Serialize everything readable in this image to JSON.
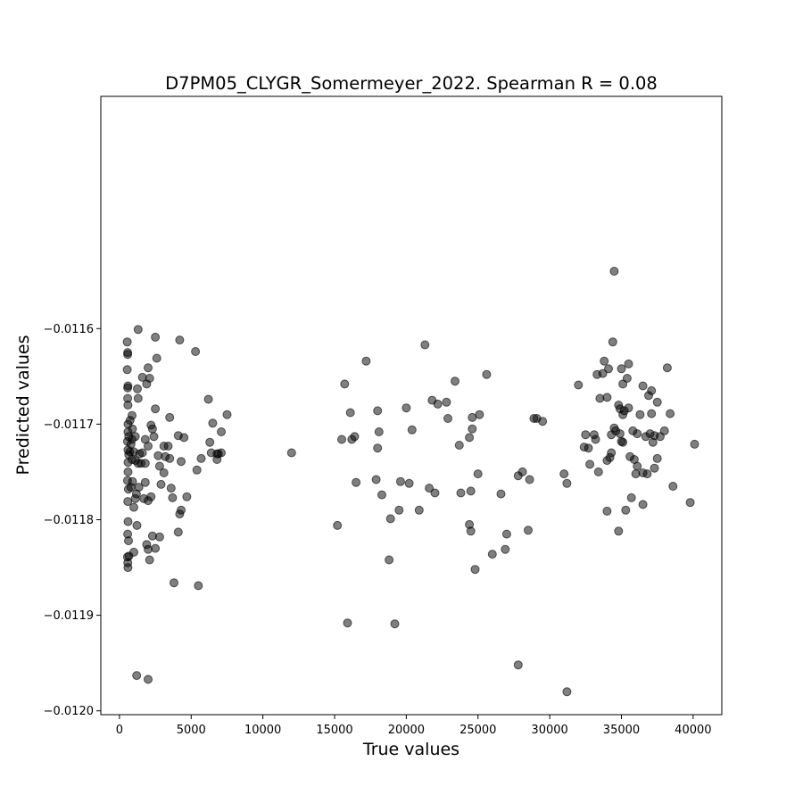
{
  "chart_data": {
    "type": "scatter",
    "title": "D7PM05_CLYGR_Somermeyer_2022. Spearman R = 0.08",
    "xlabel": "True values",
    "ylabel": "Predicted values",
    "xlim": [
      -1300,
      42000
    ],
    "ylim": [
      -0.012004,
      -0.011357
    ],
    "xticks": [
      0,
      5000,
      10000,
      15000,
      20000,
      25000,
      30000,
      35000,
      40000
    ],
    "xtick_labels": [
      "0",
      "5000",
      "10000",
      "15000",
      "20000",
      "25000",
      "30000",
      "35000",
      "40000"
    ],
    "yticks": [
      -0.0116,
      -0.0117,
      -0.0118,
      -0.0119,
      -0.012
    ],
    "ytick_labels": [
      "−0.0116",
      "−0.0117",
      "−0.0118",
      "−0.0119",
      "−0.0120"
    ],
    "grid": false,
    "marker_color": "#000000",
    "marker_opacity": 0.5,
    "points": [
      [
        540,
        -0.011614
      ],
      [
        570,
        -0.011625
      ],
      [
        570,
        -0.011627
      ],
      [
        540,
        -0.011643
      ],
      [
        590,
        -0.01166
      ],
      [
        570,
        -0.011662
      ],
      [
        570,
        -0.011673
      ],
      [
        590,
        -0.01168
      ],
      [
        880,
        -0.011691
      ],
      [
        740,
        -0.011696
      ],
      [
        600,
        -0.0117
      ],
      [
        900,
        -0.011705
      ],
      [
        590,
        -0.011708
      ],
      [
        650,
        -0.011713
      ],
      [
        880,
        -0.011716
      ],
      [
        560,
        -0.011718
      ],
      [
        1100,
        -0.011713
      ],
      [
        800,
        -0.011721
      ],
      [
        590,
        -0.011727
      ],
      [
        720,
        -0.011729
      ],
      [
        1000,
        -0.011729
      ],
      [
        650,
        -0.011732
      ],
      [
        880,
        -0.011737
      ],
      [
        600,
        -0.01174
      ],
      [
        600,
        -0.01175
      ],
      [
        910,
        -0.01176
      ],
      [
        560,
        -0.011759
      ],
      [
        620,
        -0.011768
      ],
      [
        800,
        -0.011766
      ],
      [
        1180,
        -0.011773
      ],
      [
        1100,
        -0.011778
      ],
      [
        1000,
        -0.011787
      ],
      [
        580,
        -0.011781
      ],
      [
        600,
        -0.011802
      ],
      [
        1220,
        -0.011806
      ],
      [
        570,
        -0.011815
      ],
      [
        630,
        -0.011822
      ],
      [
        1000,
        -0.011834
      ],
      [
        660,
        -0.011838
      ],
      [
        560,
        -0.011839
      ],
      [
        580,
        -0.011845
      ],
      [
        590,
        -0.01185
      ],
      [
        1120,
        -0.011738
      ],
      [
        1300,
        -0.011741
      ],
      [
        1500,
        -0.011741
      ],
      [
        1400,
        -0.011731
      ],
      [
        1600,
        -0.01173
      ],
      [
        1350,
        -0.011766
      ],
      [
        1250,
        -0.011663
      ],
      [
        1300,
        -0.011601
      ],
      [
        1300,
        -0.011673
      ],
      [
        1600,
        -0.011651
      ],
      [
        1900,
        -0.011658
      ],
      [
        1800,
        -0.011716
      ],
      [
        2000,
        -0.011723
      ],
      [
        2100,
        -0.011652
      ],
      [
        2000,
        -0.011641
      ],
      [
        2200,
        -0.011701
      ],
      [
        2300,
        -0.011705
      ],
      [
        2400,
        -0.011713
      ],
      [
        2500,
        -0.011684
      ],
      [
        2600,
        -0.011631
      ],
      [
        2500,
        -0.011609
      ],
      [
        1800,
        -0.011761
      ],
      [
        1700,
        -0.011778
      ],
      [
        2000,
        -0.01178
      ],
      [
        2200,
        -0.011776
      ],
      [
        1900,
        -0.011826
      ],
      [
        2000,
        -0.011831
      ],
      [
        2300,
        -0.011817
      ],
      [
        2500,
        -0.01183
      ],
      [
        2800,
        -0.011818
      ],
      [
        2100,
        -0.011842
      ],
      [
        1800,
        -0.011741
      ],
      [
        2700,
        -0.011733
      ],
      [
        2800,
        -0.011744
      ],
      [
        3100,
        -0.011751
      ],
      [
        3100,
        -0.011723
      ],
      [
        2900,
        -0.011763
      ],
      [
        3200,
        -0.011734
      ],
      [
        3400,
        -0.011723
      ],
      [
        3500,
        -0.011736
      ],
      [
        3500,
        -0.011693
      ],
      [
        3600,
        -0.011767
      ],
      [
        3700,
        -0.011777
      ],
      [
        4100,
        -0.011712
      ],
      [
        4300,
        -0.011739
      ],
      [
        4500,
        -0.011714
      ],
      [
        4200,
        -0.011794
      ],
      [
        4300,
        -0.01179
      ],
      [
        4700,
        -0.011776
      ],
      [
        4100,
        -0.011813
      ],
      [
        3800,
        -0.011866
      ],
      [
        4200,
        -0.011612
      ],
      [
        5300,
        -0.011624
      ],
      [
        5400,
        -0.011748
      ],
      [
        5700,
        -0.011736
      ],
      [
        5500,
        -0.011869
      ],
      [
        6200,
        -0.011674
      ],
      [
        6300,
        -0.011719
      ],
      [
        6400,
        -0.01173
      ],
      [
        6500,
        -0.011699
      ],
      [
        6800,
        -0.011731
      ],
      [
        6800,
        -0.011737
      ],
      [
        6900,
        -0.011731
      ],
      [
        7100,
        -0.01173
      ],
      [
        7100,
        -0.011708
      ],
      [
        7500,
        -0.01169
      ],
      [
        1200,
        -0.011963
      ],
      [
        2000,
        -0.011967
      ],
      [
        12000,
        -0.01173
      ],
      [
        15200,
        -0.011806
      ],
      [
        15500,
        -0.011716
      ],
      [
        15700,
        -0.011658
      ],
      [
        15900,
        -0.011908
      ],
      [
        16100,
        -0.011688
      ],
      [
        16200,
        -0.011716
      ],
      [
        16400,
        -0.011713
      ],
      [
        16500,
        -0.011761
      ],
      [
        17200,
        -0.011634
      ],
      [
        17900,
        -0.011758
      ],
      [
        18000,
        -0.011686
      ],
      [
        18000,
        -0.011725
      ],
      [
        18100,
        -0.011708
      ],
      [
        18300,
        -0.011774
      ],
      [
        18900,
        -0.011799
      ],
      [
        18800,
        -0.011842
      ],
      [
        19200,
        -0.011909
      ],
      [
        19500,
        -0.01179
      ],
      [
        19600,
        -0.01176
      ],
      [
        20000,
        -0.011683
      ],
      [
        20200,
        -0.011762
      ],
      [
        20400,
        -0.011706
      ],
      [
        20900,
        -0.01179
      ],
      [
        21300,
        -0.011617
      ],
      [
        21600,
        -0.011767
      ],
      [
        21800,
        -0.011675
      ],
      [
        22000,
        -0.011772
      ],
      [
        22200,
        -0.011679
      ],
      [
        22800,
        -0.011677
      ],
      [
        22900,
        -0.011694
      ],
      [
        23400,
        -0.011655
      ],
      [
        23700,
        -0.011722
      ],
      [
        23800,
        -0.011772
      ],
      [
        24400,
        -0.011714
      ],
      [
        24400,
        -0.011805
      ],
      [
        24500,
        -0.011812
      ],
      [
        24600,
        -0.011705
      ],
      [
        24500,
        -0.01177
      ],
      [
        24600,
        -0.011693
      ],
      [
        24800,
        -0.011852
      ],
      [
        25000,
        -0.011752
      ],
      [
        25100,
        -0.01169
      ],
      [
        25600,
        -0.011648
      ],
      [
        26000,
        -0.011836
      ],
      [
        26600,
        -0.011773
      ],
      [
        26900,
        -0.011831
      ],
      [
        27000,
        -0.011815
      ],
      [
        27800,
        -0.011952
      ],
      [
        27800,
        -0.011754
      ],
      [
        28100,
        -0.01175
      ],
      [
        28500,
        -0.011811
      ],
      [
        28600,
        -0.011758
      ],
      [
        28900,
        -0.011694
      ],
      [
        29100,
        -0.011694
      ],
      [
        29500,
        -0.011697
      ],
      [
        31000,
        -0.011752
      ],
      [
        31200,
        -0.011762
      ],
      [
        31200,
        -0.01198
      ],
      [
        32000,
        -0.011659
      ],
      [
        32400,
        -0.011724
      ],
      [
        32500,
        -0.011711
      ],
      [
        32700,
        -0.011725
      ],
      [
        32800,
        -0.011742
      ],
      [
        33100,
        -0.011711
      ],
      [
        33300,
        -0.011648
      ],
      [
        33200,
        -0.011716
      ],
      [
        33400,
        -0.01175
      ],
      [
        33500,
        -0.011673
      ],
      [
        33700,
        -0.011647
      ],
      [
        33800,
        -0.011634
      ],
      [
        34000,
        -0.011672
      ],
      [
        34000,
        -0.011738
      ],
      [
        34000,
        -0.011791
      ],
      [
        34100,
        -0.011642
      ],
      [
        34200,
        -0.011735
      ],
      [
        34300,
        -0.011711
      ],
      [
        34300,
        -0.01173
      ],
      [
        34400,
        -0.011614
      ],
      [
        34500,
        -0.011704
      ],
      [
        34500,
        -0.01154
      ],
      [
        34600,
        -0.011707
      ],
      [
        34800,
        -0.01168
      ],
      [
        34800,
        -0.011812
      ],
      [
        34900,
        -0.011684
      ],
      [
        34900,
        -0.01171
      ],
      [
        35000,
        -0.011642
      ],
      [
        35000,
        -0.011718
      ],
      [
        35100,
        -0.011658
      ],
      [
        35100,
        -0.01169
      ],
      [
        35100,
        -0.011719
      ],
      [
        35200,
        -0.011686
      ],
      [
        35300,
        -0.01179
      ],
      [
        35400,
        -0.011652
      ],
      [
        35500,
        -0.011637
      ],
      [
        35500,
        -0.011683
      ],
      [
        35600,
        -0.011734
      ],
      [
        35700,
        -0.011777
      ],
      [
        35800,
        -0.011707
      ],
      [
        35900,
        -0.011737
      ],
      [
        36000,
        -0.011752
      ],
      [
        36100,
        -0.01171
      ],
      [
        36100,
        -0.011744
      ],
      [
        36300,
        -0.01169
      ],
      [
        36500,
        -0.01166
      ],
      [
        36500,
        -0.011751
      ],
      [
        36500,
        -0.011784
      ],
      [
        36700,
        -0.011713
      ],
      [
        36800,
        -0.011752
      ],
      [
        36900,
        -0.01167
      ],
      [
        37000,
        -0.01171
      ],
      [
        37100,
        -0.011665
      ],
      [
        37100,
        -0.011689
      ],
      [
        37200,
        -0.011719
      ],
      [
        37300,
        -0.011712
      ],
      [
        37300,
        -0.011746
      ],
      [
        37500,
        -0.011677
      ],
      [
        37500,
        -0.011736
      ],
      [
        37700,
        -0.011713
      ],
      [
        38000,
        -0.011707
      ],
      [
        38200,
        -0.011641
      ],
      [
        38400,
        -0.011689
      ],
      [
        38600,
        -0.011765
      ],
      [
        39800,
        -0.011782
      ],
      [
        40100,
        -0.011721
      ]
    ]
  }
}
